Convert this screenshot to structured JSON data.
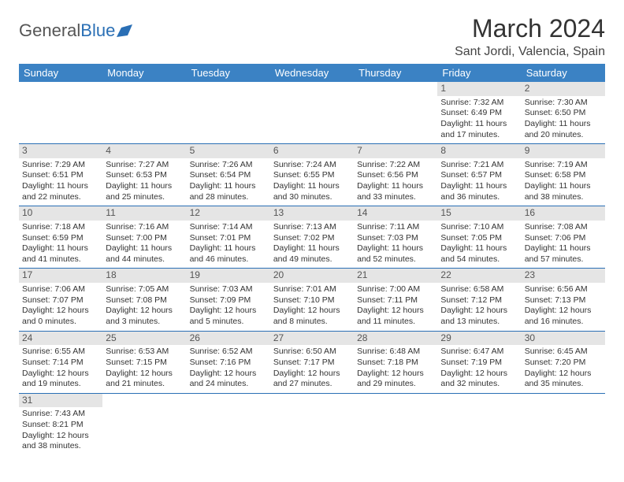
{
  "logo": {
    "text1": "General",
    "text2": "Blue"
  },
  "title": "March 2024",
  "location": "Sant Jordi, Valencia, Spain",
  "colors": {
    "header_bg": "#3b82c4",
    "header_text": "#ffffff",
    "daynum_bg": "#e5e5e5",
    "border": "#2a6fb5",
    "logo_gray": "#555555",
    "logo_blue": "#2a6fb5"
  },
  "weekdays": [
    "Sunday",
    "Monday",
    "Tuesday",
    "Wednesday",
    "Thursday",
    "Friday",
    "Saturday"
  ],
  "weeks": [
    [
      null,
      null,
      null,
      null,
      null,
      {
        "n": "1",
        "sunrise": "7:32 AM",
        "sunset": "6:49 PM",
        "dl1": "11 hours",
        "dl2": "and 17 minutes."
      },
      {
        "n": "2",
        "sunrise": "7:30 AM",
        "sunset": "6:50 PM",
        "dl1": "11 hours",
        "dl2": "and 20 minutes."
      }
    ],
    [
      {
        "n": "3",
        "sunrise": "7:29 AM",
        "sunset": "6:51 PM",
        "dl1": "11 hours",
        "dl2": "and 22 minutes."
      },
      {
        "n": "4",
        "sunrise": "7:27 AM",
        "sunset": "6:53 PM",
        "dl1": "11 hours",
        "dl2": "and 25 minutes."
      },
      {
        "n": "5",
        "sunrise": "7:26 AM",
        "sunset": "6:54 PM",
        "dl1": "11 hours",
        "dl2": "and 28 minutes."
      },
      {
        "n": "6",
        "sunrise": "7:24 AM",
        "sunset": "6:55 PM",
        "dl1": "11 hours",
        "dl2": "and 30 minutes."
      },
      {
        "n": "7",
        "sunrise": "7:22 AM",
        "sunset": "6:56 PM",
        "dl1": "11 hours",
        "dl2": "and 33 minutes."
      },
      {
        "n": "8",
        "sunrise": "7:21 AM",
        "sunset": "6:57 PM",
        "dl1": "11 hours",
        "dl2": "and 36 minutes."
      },
      {
        "n": "9",
        "sunrise": "7:19 AM",
        "sunset": "6:58 PM",
        "dl1": "11 hours",
        "dl2": "and 38 minutes."
      }
    ],
    [
      {
        "n": "10",
        "sunrise": "7:18 AM",
        "sunset": "6:59 PM",
        "dl1": "11 hours",
        "dl2": "and 41 minutes."
      },
      {
        "n": "11",
        "sunrise": "7:16 AM",
        "sunset": "7:00 PM",
        "dl1": "11 hours",
        "dl2": "and 44 minutes."
      },
      {
        "n": "12",
        "sunrise": "7:14 AM",
        "sunset": "7:01 PM",
        "dl1": "11 hours",
        "dl2": "and 46 minutes."
      },
      {
        "n": "13",
        "sunrise": "7:13 AM",
        "sunset": "7:02 PM",
        "dl1": "11 hours",
        "dl2": "and 49 minutes."
      },
      {
        "n": "14",
        "sunrise": "7:11 AM",
        "sunset": "7:03 PM",
        "dl1": "11 hours",
        "dl2": "and 52 minutes."
      },
      {
        "n": "15",
        "sunrise": "7:10 AM",
        "sunset": "7:05 PM",
        "dl1": "11 hours",
        "dl2": "and 54 minutes."
      },
      {
        "n": "16",
        "sunrise": "7:08 AM",
        "sunset": "7:06 PM",
        "dl1": "11 hours",
        "dl2": "and 57 minutes."
      }
    ],
    [
      {
        "n": "17",
        "sunrise": "7:06 AM",
        "sunset": "7:07 PM",
        "dl1": "12 hours",
        "dl2": "and 0 minutes."
      },
      {
        "n": "18",
        "sunrise": "7:05 AM",
        "sunset": "7:08 PM",
        "dl1": "12 hours",
        "dl2": "and 3 minutes."
      },
      {
        "n": "19",
        "sunrise": "7:03 AM",
        "sunset": "7:09 PM",
        "dl1": "12 hours",
        "dl2": "and 5 minutes."
      },
      {
        "n": "20",
        "sunrise": "7:01 AM",
        "sunset": "7:10 PM",
        "dl1": "12 hours",
        "dl2": "and 8 minutes."
      },
      {
        "n": "21",
        "sunrise": "7:00 AM",
        "sunset": "7:11 PM",
        "dl1": "12 hours",
        "dl2": "and 11 minutes."
      },
      {
        "n": "22",
        "sunrise": "6:58 AM",
        "sunset": "7:12 PM",
        "dl1": "12 hours",
        "dl2": "and 13 minutes."
      },
      {
        "n": "23",
        "sunrise": "6:56 AM",
        "sunset": "7:13 PM",
        "dl1": "12 hours",
        "dl2": "and 16 minutes."
      }
    ],
    [
      {
        "n": "24",
        "sunrise": "6:55 AM",
        "sunset": "7:14 PM",
        "dl1": "12 hours",
        "dl2": "and 19 minutes."
      },
      {
        "n": "25",
        "sunrise": "6:53 AM",
        "sunset": "7:15 PM",
        "dl1": "12 hours",
        "dl2": "and 21 minutes."
      },
      {
        "n": "26",
        "sunrise": "6:52 AM",
        "sunset": "7:16 PM",
        "dl1": "12 hours",
        "dl2": "and 24 minutes."
      },
      {
        "n": "27",
        "sunrise": "6:50 AM",
        "sunset": "7:17 PM",
        "dl1": "12 hours",
        "dl2": "and 27 minutes."
      },
      {
        "n": "28",
        "sunrise": "6:48 AM",
        "sunset": "7:18 PM",
        "dl1": "12 hours",
        "dl2": "and 29 minutes."
      },
      {
        "n": "29",
        "sunrise": "6:47 AM",
        "sunset": "7:19 PM",
        "dl1": "12 hours",
        "dl2": "and 32 minutes."
      },
      {
        "n": "30",
        "sunrise": "6:45 AM",
        "sunset": "7:20 PM",
        "dl1": "12 hours",
        "dl2": "and 35 minutes."
      }
    ],
    [
      {
        "n": "31",
        "sunrise": "7:43 AM",
        "sunset": "8:21 PM",
        "dl1": "12 hours",
        "dl2": "and 38 minutes."
      },
      null,
      null,
      null,
      null,
      null,
      null
    ]
  ],
  "labels": {
    "sunrise": "Sunrise:",
    "sunset": "Sunset:",
    "daylight": "Daylight:"
  }
}
